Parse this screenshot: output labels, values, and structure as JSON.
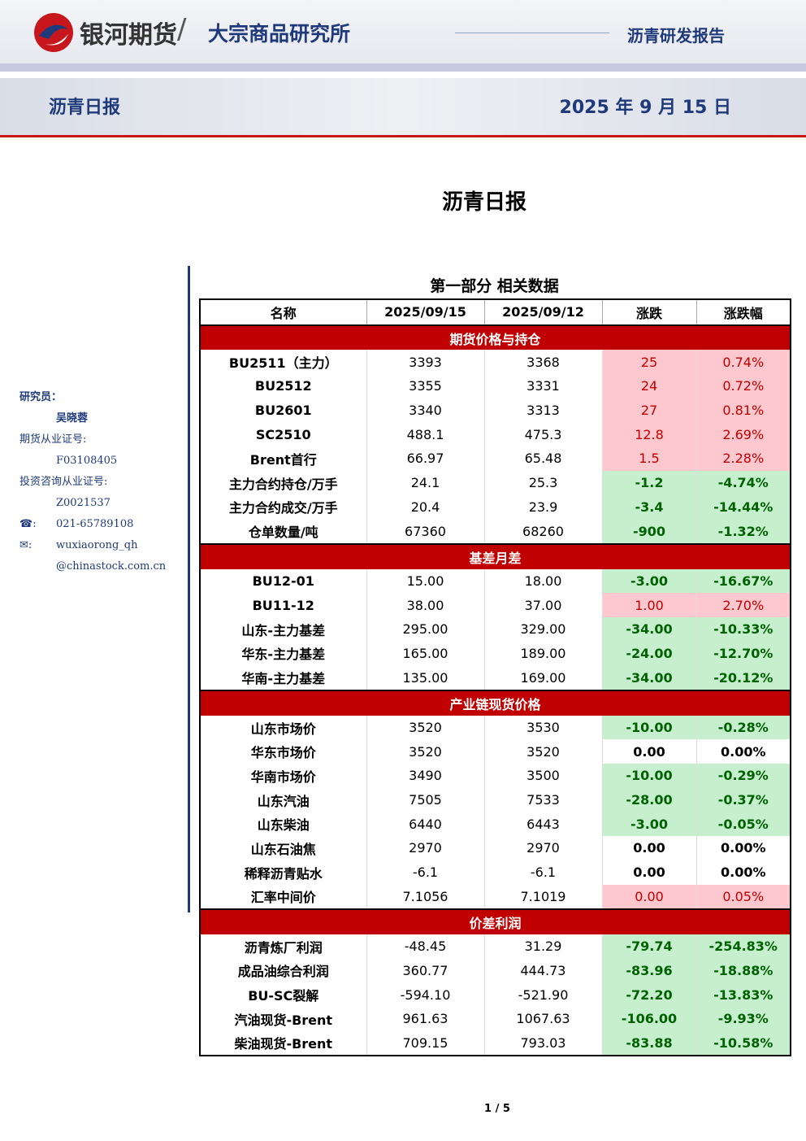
{
  "header": {
    "logo_text": "银河期货",
    "divider": "/",
    "department": "大宗商品研究所",
    "report_type": "沥青研发报告"
  },
  "banner": {
    "title": "沥青日报",
    "date": "2025 年 9 月 15 日"
  },
  "main_title": "沥青日报",
  "sidebar": {
    "researcher_label": "研究员：",
    "researcher": "吴晓蓉",
    "cert_label": "期货从业证号:",
    "cert": "F03108405",
    "consult_label": "投资咨询从业证号:",
    "consult": "Z0021537",
    "phone_icon": "☎:",
    "phone": "021-65789108",
    "email_icon": "✉:",
    "email_lines": [
      "wuxiaorong_qh",
      "@chinastock.com.cn"
    ]
  },
  "table": {
    "title": "第一部分 相关数据",
    "header": [
      "名称",
      "2025/09/15",
      "2025/09/12",
      "涨跌",
      "涨跌幅"
    ],
    "sections": [
      {
        "name": "期货价格与持仓",
        "rows": [
          {
            "tone": "up",
            "cells": [
              "BU2511（主力）",
              "3393",
              "3368",
              "25",
              "0.74%"
            ]
          },
          {
            "tone": "up",
            "cells": [
              "BU2512",
              "3355",
              "3331",
              "24",
              "0.72%"
            ]
          },
          {
            "tone": "up",
            "cells": [
              "BU2601",
              "3340",
              "3313",
              "27",
              "0.81%"
            ]
          },
          {
            "tone": "up",
            "cells": [
              "SC2510",
              "488.1",
              "475.3",
              "12.8",
              "2.69%"
            ]
          },
          {
            "tone": "up",
            "cells": [
              "Brent首行",
              "66.97",
              "65.48",
              "1.5",
              "2.28%"
            ]
          },
          {
            "tone": "down",
            "cells": [
              "主力合约持仓/万手",
              "24.1",
              "25.3",
              "-1.2",
              "-4.74%"
            ]
          },
          {
            "tone": "down",
            "cells": [
              "主力合约成交/万手",
              "20.4",
              "23.9",
              "-3.4",
              "-14.44%"
            ]
          },
          {
            "tone": "down",
            "cells": [
              "仓单数量/吨",
              "67360",
              "68260",
              "-900",
              "-1.32%"
            ]
          }
        ]
      },
      {
        "name": "基差月差",
        "rows": [
          {
            "tone": "down",
            "cells": [
              "BU12-01",
              "15.00",
              "18.00",
              "-3.00",
              "-16.67%"
            ]
          },
          {
            "tone": "up",
            "cells": [
              "BU11-12",
              "38.00",
              "37.00",
              "1.00",
              "2.70%"
            ]
          },
          {
            "tone": "down",
            "cells": [
              "山东-主力基差",
              "295.00",
              "329.00",
              "-34.00",
              "-10.33%"
            ]
          },
          {
            "tone": "down",
            "cells": [
              "华东-主力基差",
              "165.00",
              "189.00",
              "-24.00",
              "-12.70%"
            ]
          },
          {
            "tone": "down",
            "cells": [
              "华南-主力基差",
              "135.00",
              "169.00",
              "-34.00",
              "-20.12%"
            ]
          }
        ]
      },
      {
        "name": "产业链现货价格",
        "rows": [
          {
            "tone": "down",
            "cells": [
              "山东市场价",
              "3520",
              "3530",
              "-10.00",
              "-0.28%"
            ]
          },
          {
            "tone": "flat",
            "cells": [
              "华东市场价",
              "3520",
              "3520",
              "0.00",
              "0.00%"
            ]
          },
          {
            "tone": "down",
            "cells": [
              "华南市场价",
              "3490",
              "3500",
              "-10.00",
              "-0.29%"
            ]
          },
          {
            "tone": "down",
            "cells": [
              "山东汽油",
              "7505",
              "7533",
              "-28.00",
              "-0.37%"
            ]
          },
          {
            "tone": "down",
            "cells": [
              "山东柴油",
              "6440",
              "6443",
              "-3.00",
              "-0.05%"
            ]
          },
          {
            "tone": "flat",
            "cells": [
              "山东石油焦",
              "2970",
              "2970",
              "0.00",
              "0.00%"
            ]
          },
          {
            "tone": "flat",
            "cells": [
              "稀释沥青贴水",
              "-6.1",
              "-6.1",
              "0.00",
              "0.00%"
            ]
          },
          {
            "tone": "up",
            "cells": [
              "汇率中间价",
              "7.1056",
              "7.1019",
              "0.00",
              "0.05%"
            ]
          }
        ]
      },
      {
        "name": "价差利润",
        "rows": [
          {
            "tone": "down",
            "cells": [
              "沥青炼厂利润",
              "-48.45",
              "31.29",
              "-79.74",
              "-254.83%"
            ]
          },
          {
            "tone": "down",
            "cells": [
              "成品油综合利润",
              "360.77",
              "444.73",
              "-83.96",
              "-18.88%"
            ]
          },
          {
            "tone": "down",
            "cells": [
              "BU-SC裂解",
              "-594.10",
              "-521.90",
              "-72.20",
              "-13.83%"
            ]
          },
          {
            "tone": "down",
            "cells": [
              "汽油现货-Brent",
              "961.63",
              "1067.63",
              "-106.00",
              "-9.93%"
            ]
          },
          {
            "tone": "down",
            "cells": [
              "柴油现货-Brent",
              "709.15",
              "793.03",
              "-83.88",
              "-10.58%"
            ]
          }
        ]
      }
    ]
  },
  "footer": {
    "page": "1 / 5"
  }
}
